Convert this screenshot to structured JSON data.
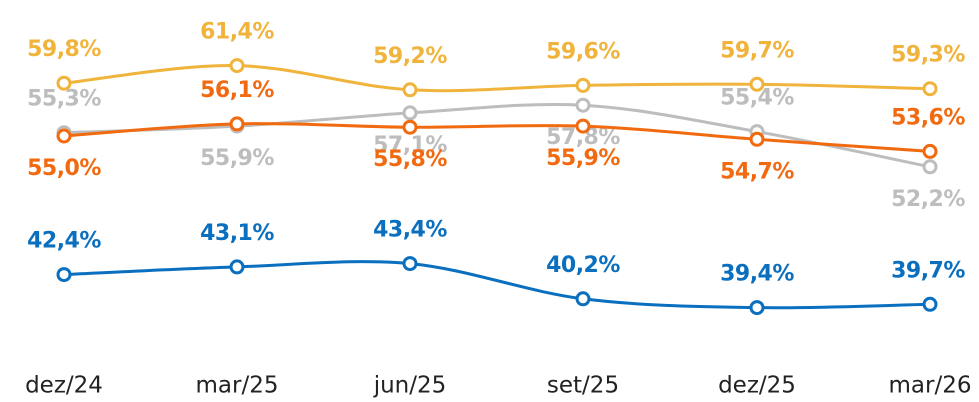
{
  "chart_data": {
    "type": "line",
    "categories": [
      "dez/24",
      "mar/25",
      "jun/25",
      "set/25",
      "dez/25",
      "mar/26"
    ],
    "ylim": [
      37,
      63
    ],
    "series": [
      {
        "color": "#bdbdbd",
        "values": [
          55.3,
          55.9,
          57.1,
          57.8,
          55.4,
          52.2
        ],
        "value_labels": [
          "55,3%",
          "55,9%",
          "57,1%",
          "57,8%",
          "55,4%",
          "52,2%"
        ]
      },
      {
        "color": "#f26a10",
        "values": [
          55.0,
          56.1,
          55.8,
          55.9,
          54.7,
          53.6
        ],
        "value_labels": [
          "55,0%",
          "56,1%",
          "55,8%",
          "55,9%",
          "54,7%",
          "53,6%"
        ]
      },
      {
        "color": "#f0b43c",
        "values": [
          59.8,
          61.4,
          59.2,
          59.6,
          59.7,
          59.3
        ],
        "value_labels": [
          "59,8%",
          "61,4%",
          "59,2%",
          "59,6%",
          "59,7%",
          "59,3%"
        ]
      },
      {
        "color": "#0a6fbf",
        "values": [
          42.4,
          43.1,
          43.4,
          40.2,
          39.4,
          39.7
        ],
        "value_labels": [
          "42,4%",
          "43,1%",
          "43,4%",
          "40,2%",
          "39,4%",
          "39,7%"
        ]
      }
    ]
  }
}
